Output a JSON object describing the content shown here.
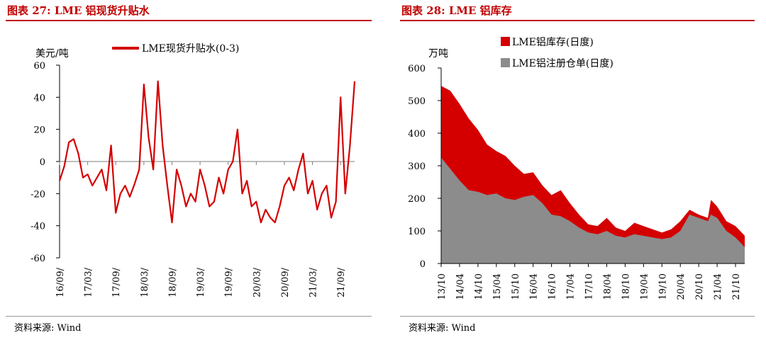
{
  "charts": [
    {
      "fig_title": "图表 27:  LME 铝现货升贴水",
      "source": "资料来源:  Wind"
    },
    {
      "fig_title": "图表 28:  LME 铝库存",
      "source": "资料来源:  Wind"
    }
  ],
  "colors": {
    "red": "#d40000",
    "gray": "#8c8c8c",
    "title_red": "#c00000"
  },
  "chart_data": [
    {
      "type": "line",
      "title": "LME 铝现货升贴水",
      "ylabel": "美元/吨",
      "ylim": [
        -60,
        60
      ],
      "yticks": [
        60,
        40,
        20,
        0,
        -20,
        -40,
        -60
      ],
      "xtick_labels": [
        "16/09/",
        "17/03/",
        "17/09/",
        "18/03/",
        "18/09/",
        "19/03/",
        "19/09/",
        "20/03/",
        "20/09/",
        "21/03/",
        "21/09/"
      ],
      "xtick_dates": [
        "2016-09",
        "2017-03",
        "2017-09",
        "2018-03",
        "2018-09",
        "2019-03",
        "2019-09",
        "2020-03",
        "2020-09",
        "2021-03",
        "2021-09"
      ],
      "xlim": [
        "2016-09",
        "2021-12"
      ],
      "legend_position": "top",
      "series": [
        {
          "name": "LME现货升贴水(0-3)",
          "color": "#d40000",
          "points": [
            [
              "2016-09",
              -12
            ],
            [
              "2016-10",
              -3
            ],
            [
              "2016-11",
              12
            ],
            [
              "2016-12",
              14
            ],
            [
              "2017-01",
              5
            ],
            [
              "2017-02",
              -10
            ],
            [
              "2017-03",
              -8
            ],
            [
              "2017-04",
              -15
            ],
            [
              "2017-05",
              -10
            ],
            [
              "2017-06",
              -5
            ],
            [
              "2017-07",
              -18
            ],
            [
              "2017-08",
              10
            ],
            [
              "2017-09",
              -32
            ],
            [
              "2017-10",
              -20
            ],
            [
              "2017-11",
              -15
            ],
            [
              "2017-12",
              -22
            ],
            [
              "2018-01",
              -14
            ],
            [
              "2018-02",
              -5
            ],
            [
              "2018-03",
              48
            ],
            [
              "2018-04",
              15
            ],
            [
              "2018-05",
              -5
            ],
            [
              "2018-06",
              50
            ],
            [
              "2018-07",
              10
            ],
            [
              "2018-08",
              -15
            ],
            [
              "2018-09",
              -38
            ],
            [
              "2018-10",
              -5
            ],
            [
              "2018-11",
              -15
            ],
            [
              "2018-12",
              -28
            ],
            [
              "2019-01",
              -20
            ],
            [
              "2019-02",
              -25
            ],
            [
              "2019-03",
              -5
            ],
            [
              "2019-04",
              -15
            ],
            [
              "2019-05",
              -28
            ],
            [
              "2019-06",
              -25
            ],
            [
              "2019-07",
              -10
            ],
            [
              "2019-08",
              -20
            ],
            [
              "2019-09",
              -5
            ],
            [
              "2019-10",
              0
            ],
            [
              "2019-11",
              20
            ],
            [
              "2019-12",
              -20
            ],
            [
              "2020-01",
              -12
            ],
            [
              "2020-02",
              -28
            ],
            [
              "2020-03",
              -25
            ],
            [
              "2020-04",
              -38
            ],
            [
              "2020-05",
              -30
            ],
            [
              "2020-06",
              -35
            ],
            [
              "2020-07",
              -38
            ],
            [
              "2020-08",
              -28
            ],
            [
              "2020-09",
              -15
            ],
            [
              "2020-10",
              -10
            ],
            [
              "2020-11",
              -18
            ],
            [
              "2020-12",
              -5
            ],
            [
              "2021-01",
              5
            ],
            [
              "2021-02",
              -20
            ],
            [
              "2021-03",
              -12
            ],
            [
              "2021-04",
              -30
            ],
            [
              "2021-05",
              -20
            ],
            [
              "2021-06",
              -15
            ],
            [
              "2021-07",
              -35
            ],
            [
              "2021-08",
              -25
            ],
            [
              "2021-09",
              40
            ],
            [
              "2021-10",
              -20
            ],
            [
              "2021-11",
              10
            ],
            [
              "2021-12",
              50
            ]
          ]
        }
      ]
    },
    {
      "type": "area",
      "title": "LME 铝库存",
      "ylabel": "万吨",
      "ylim": [
        0,
        600
      ],
      "yticks": [
        600,
        500,
        400,
        300,
        200,
        100,
        0
      ],
      "xtick_labels": [
        "13/10",
        "14/04",
        "14/10",
        "15/04",
        "15/10",
        "16/04",
        "16/10",
        "17/04",
        "17/10",
        "18/04",
        "18/10",
        "19/04",
        "19/10",
        "20/04",
        "20/10",
        "21/04",
        "21/10"
      ],
      "xtick_dates": [
        "2013-10",
        "2014-04",
        "2014-10",
        "2015-04",
        "2015-10",
        "2016-04",
        "2016-10",
        "2017-04",
        "2017-10",
        "2018-04",
        "2018-10",
        "2019-04",
        "2019-10",
        "2020-04",
        "2020-10",
        "2021-04",
        "2021-10"
      ],
      "xlim": [
        "2013-10",
        "2022-01"
      ],
      "legend_position": "top",
      "series": [
        {
          "name": "LME铝库存(日度)",
          "color": "#d40000",
          "points": [
            [
              "2013-10",
              545
            ],
            [
              "2014-01",
              530
            ],
            [
              "2014-04",
              490
            ],
            [
              "2014-07",
              445
            ],
            [
              "2014-10",
              410
            ],
            [
              "2015-01",
              365
            ],
            [
              "2015-04",
              345
            ],
            [
              "2015-07",
              330
            ],
            [
              "2015-10",
              300
            ],
            [
              "2016-01",
              275
            ],
            [
              "2016-04",
              280
            ],
            [
              "2016-07",
              240
            ],
            [
              "2016-10",
              210
            ],
            [
              "2017-01",
              225
            ],
            [
              "2017-04",
              185
            ],
            [
              "2017-07",
              150
            ],
            [
              "2017-10",
              120
            ],
            [
              "2018-01",
              115
            ],
            [
              "2018-04",
              140
            ],
            [
              "2018-07",
              110
            ],
            [
              "2018-10",
              100
            ],
            [
              "2019-01",
              125
            ],
            [
              "2019-04",
              115
            ],
            [
              "2019-07",
              105
            ],
            [
              "2019-10",
              95
            ],
            [
              "2020-01",
              105
            ],
            [
              "2020-04",
              130
            ],
            [
              "2020-07",
              165
            ],
            [
              "2020-10",
              150
            ],
            [
              "2021-01",
              140
            ],
            [
              "2021-02",
              195
            ],
            [
              "2021-04",
              175
            ],
            [
              "2021-07",
              130
            ],
            [
              "2021-10",
              115
            ],
            [
              "2021-12",
              95
            ],
            [
              "2022-01",
              85
            ]
          ]
        },
        {
          "name": "LME铝注册仓单(日度)",
          "color": "#8c8c8c",
          "points": [
            [
              "2013-10",
              325
            ],
            [
              "2014-01",
              290
            ],
            [
              "2014-04",
              255
            ],
            [
              "2014-07",
              225
            ],
            [
              "2014-10",
              220
            ],
            [
              "2015-01",
              210
            ],
            [
              "2015-04",
              215
            ],
            [
              "2015-07",
              200
            ],
            [
              "2015-10",
              195
            ],
            [
              "2016-01",
              205
            ],
            [
              "2016-04",
              210
            ],
            [
              "2016-07",
              185
            ],
            [
              "2016-10",
              150
            ],
            [
              "2017-01",
              145
            ],
            [
              "2017-04",
              130
            ],
            [
              "2017-07",
              110
            ],
            [
              "2017-10",
              95
            ],
            [
              "2018-01",
              90
            ],
            [
              "2018-04",
              100
            ],
            [
              "2018-07",
              85
            ],
            [
              "2018-10",
              80
            ],
            [
              "2019-01",
              90
            ],
            [
              "2019-04",
              85
            ],
            [
              "2019-07",
              80
            ],
            [
              "2019-10",
              75
            ],
            [
              "2020-01",
              80
            ],
            [
              "2020-04",
              100
            ],
            [
              "2020-07",
              150
            ],
            [
              "2020-10",
              140
            ],
            [
              "2021-01",
              130
            ],
            [
              "2021-02",
              150
            ],
            [
              "2021-04",
              140
            ],
            [
              "2021-07",
              100
            ],
            [
              "2021-10",
              80
            ],
            [
              "2021-12",
              60
            ],
            [
              "2022-01",
              50
            ]
          ]
        }
      ]
    }
  ]
}
